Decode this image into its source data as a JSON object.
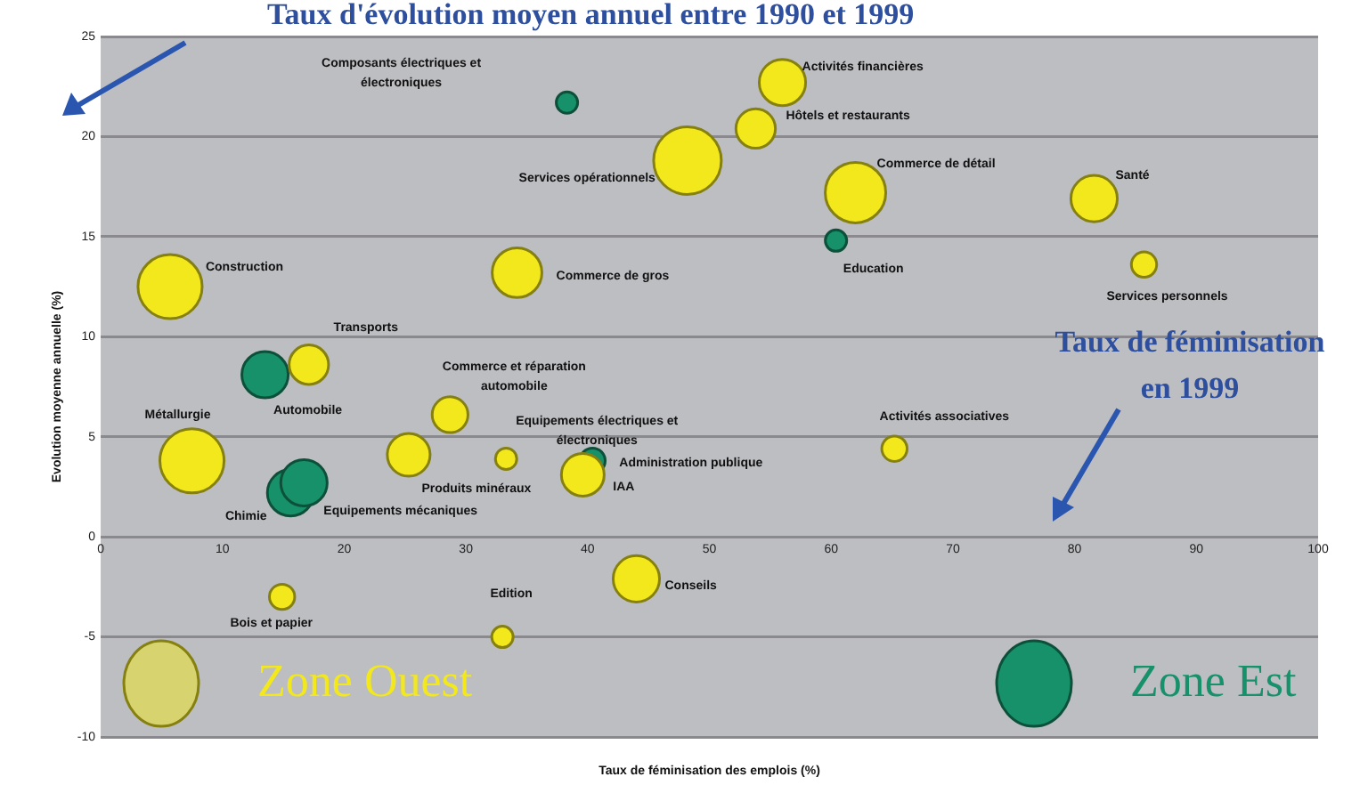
{
  "chart_data": {
    "type": "bubble",
    "xlabel": "Taux de féminisation des emplois (%)",
    "ylabel": "Evolution moyenne annuelle (%)",
    "xlim": [
      0,
      100
    ],
    "xticks": [
      0,
      10,
      20,
      30,
      40,
      50,
      60,
      70,
      80,
      90,
      100
    ],
    "ylim": [
      -10,
      25
    ],
    "yticks": [
      -10,
      -5,
      0,
      5,
      10,
      15,
      20,
      25
    ],
    "grid": "y",
    "legend": "bottom",
    "series": [
      {
        "name": "Zone Ouest",
        "color": "#f2e81c",
        "x": [
          56,
          53.8,
          48.2,
          62,
          81.6,
          85.7,
          5.7,
          34.2,
          17.1,
          28.7,
          7.5,
          25.3,
          33.3,
          39.6,
          65.2,
          44,
          14.9,
          33
        ],
        "values": [
          22.7,
          20.4,
          18.8,
          17.2,
          16.9,
          13.6,
          12.5,
          13.2,
          8.6,
          6.1,
          3.8,
          4.1,
          3.9,
          3.1,
          4.4,
          -2.1,
          -3,
          -5
        ],
        "sizes": [
          0.47,
          0.34,
          1,
          0.8,
          0.47,
          0.14,
          0.9,
          0.54,
          0.34,
          0.28,
          0.9,
          0.4,
          0.1,
          0.4,
          0.14,
          0.47,
          0.14,
          0.1
        ]
      },
      {
        "name": "Zone Est",
        "color": "#17916a",
        "x": [
          38.3,
          60.4,
          13.5,
          15.6,
          16.7,
          40.4
        ],
        "values": [
          21.7,
          14.8,
          8.1,
          2.2,
          2.7,
          3.8
        ],
        "sizes": [
          0.1,
          0.1,
          0.47,
          0.47,
          0.47,
          0.14
        ]
      }
    ],
    "annotations": [
      "Activités financières",
      "Hôtels et restaurants",
      "Services opérationnels",
      "Commerce de détail",
      "Santé",
      "Services personnels",
      "Construction",
      "Commerce de gros",
      "Transports",
      "Commerce et réparation automobile",
      "Métallurgie",
      "Produits minéraux",
      "Equipements électriques et électroniques",
      "IAA",
      "Activités associatives",
      "Conseils",
      "Bois et papier",
      "Edition",
      "Composants électriques et électroniques",
      "Education",
      "Automobile",
      "Chimie",
      "Equipements mécaniques",
      "Administration publique",
      "Taux d'évolution moyen annuel entre 1990 et 1999",
      "Taux de féminisation en 1999"
    ]
  }
}
